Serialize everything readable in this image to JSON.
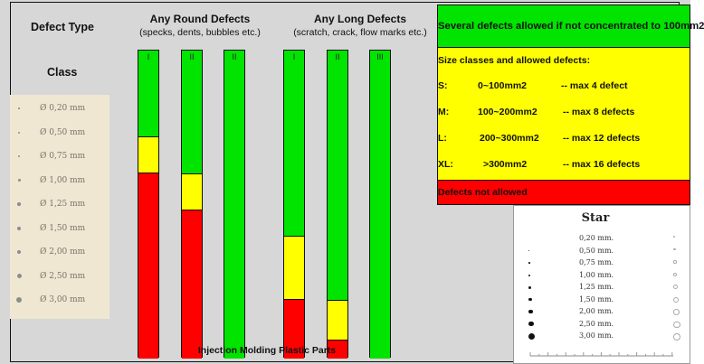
{
  "title": "Defect Type",
  "class_label": "Class",
  "columns": {
    "round": {
      "title": "Any Round Defects",
      "subtitle": "(specks, dents, bubbles etc.)"
    },
    "long": {
      "title": "Any Long Defects",
      "subtitle": "(scratch, crack, flow marks etc.)"
    }
  },
  "bottom_label": "Injection Molding Plastic Parts",
  "scale_classes": [
    "Ø 0,20 mm",
    "Ø 0,50 mm",
    "Ø 0,75 mm",
    "Ø 1,00 mm",
    "Ø 1,25 mm",
    "Ø 1,50 mm",
    "Ø 2,00 mm",
    "Ø 2,50 mm",
    "Ø 3,00 mm"
  ],
  "bars": [
    {
      "label": "I",
      "green_until": 0.28,
      "yellow_until": 0.4
    },
    {
      "label": "II",
      "green_until": 0.4,
      "yellow_until": 0.52
    },
    {
      "label": "II",
      "green_until": 1.0,
      "yellow_until": 1.0
    },
    {
      "label": "I",
      "green_until": 0.6,
      "yellow_until": 0.81
    },
    {
      "label": "II",
      "green_until": 0.81,
      "yellow_until": 0.94
    },
    {
      "label": "III",
      "green_until": 1.0,
      "yellow_until": 1.0
    }
  ],
  "legend": {
    "green": "Several defects allowed if not concentrated to 100mm2",
    "yellow_title": "Size classes and allowed defects:",
    "rows": [
      {
        "cls": "S:",
        "range": "0~100mm2",
        "rule": "-- max 4 defect"
      },
      {
        "cls": "M:",
        "range": "100~200mm2",
        "rule": "-- max 8 defects"
      },
      {
        "cls": "L:",
        "range": "200~300mm2",
        "rule": "-- max 12 defects"
      },
      {
        "cls": "XL:",
        "range": ">300mm2",
        "rule": "-- max 16 defects"
      }
    ],
    "red": "Defects not allowed"
  },
  "star_card": {
    "title": "Star",
    "sizes": [
      "0,20 mm.",
      "0,50 mm.",
      "0,75 mm.",
      "1,00 mm.",
      "1,25 mm.",
      "1,50 mm.",
      "2,00 mm.",
      "2,50 mm.",
      "3,00 mm."
    ]
  },
  "colors": {
    "green": "#00e400",
    "yellow": "#ffff00",
    "red": "#ff0000",
    "background": "#d7d7d7"
  }
}
